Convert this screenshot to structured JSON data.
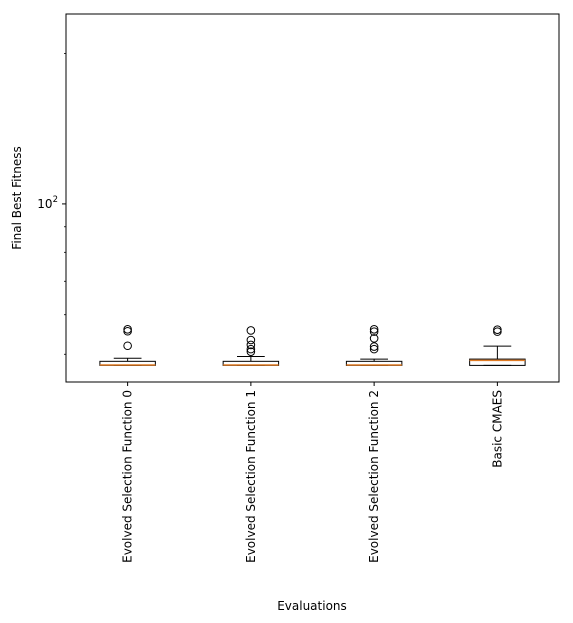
{
  "chart_data": {
    "type": "box",
    "title": "",
    "xlabel": "Evaluations",
    "ylabel": "Final Best Fitness",
    "y_scale": "log",
    "ylim": [
      44,
      240
    ],
    "y_ticks": [
      {
        "value": 100,
        "base": "10",
        "exp": "2"
      }
    ],
    "grid": false,
    "legend": "none",
    "colors": {
      "box": "#000000",
      "median": "#e07b24",
      "outlier": "#000000"
    },
    "categories": [
      "Evolved Selection Function 0",
      "Evolved Selection Function 1",
      "Evolved Selection Function 2",
      "Basic CMAES"
    ],
    "boxes": [
      {
        "whisker_low": 47.5,
        "q1": 47.5,
        "median": 47.6,
        "q3": 48.4,
        "whisker_high": 49.1,
        "outliers": [
          52.0,
          55.6,
          56.1
        ]
      },
      {
        "whisker_low": 47.5,
        "q1": 47.5,
        "median": 47.6,
        "q3": 48.4,
        "whisker_high": 49.5,
        "outliers": [
          50.6,
          51.2,
          52.2,
          53.4,
          55.8
        ]
      },
      {
        "whisker_low": 47.5,
        "q1": 47.5,
        "median": 47.6,
        "q3": 48.4,
        "whisker_high": 48.9,
        "outliers": [
          51.2,
          51.8,
          53.8,
          55.5,
          56.1
        ]
      },
      {
        "whisker_low": 47.5,
        "q1": 47.5,
        "median": 48.6,
        "q3": 48.9,
        "whisker_high": 51.9,
        "outliers": [
          55.5,
          56.0
        ]
      }
    ]
  }
}
